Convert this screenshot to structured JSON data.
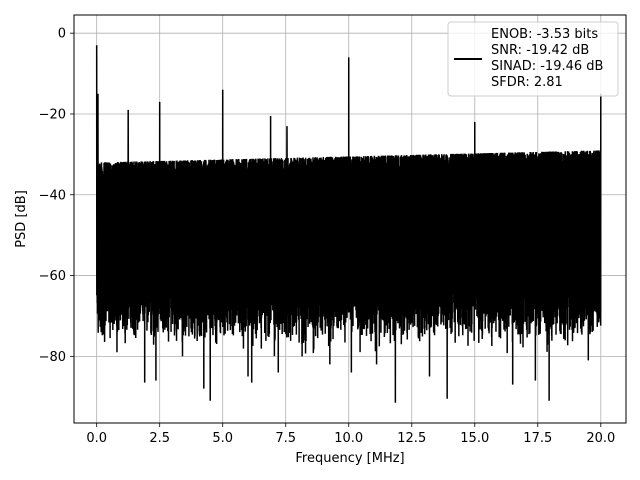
{
  "chart_data": {
    "type": "line",
    "xlabel": "Frequency [MHz]",
    "ylabel": "PSD [dB]",
    "xlim": [
      -0.9,
      21.0
    ],
    "ylim": [
      -96.5,
      4.5
    ],
    "xticks": [
      0.0,
      2.5,
      5.0,
      7.5,
      10.0,
      12.5,
      15.0,
      17.5,
      20.0
    ],
    "xtick_labels": [
      "0.0",
      "2.5",
      "5.0",
      "7.5",
      "10.0",
      "12.5",
      "15.0",
      "17.5",
      "20.0"
    ],
    "yticks": [
      0,
      -20,
      -40,
      -60,
      -80
    ],
    "ytick_labels": [
      "0",
      "−20",
      "−40",
      "−60",
      "−80"
    ],
    "grid": true,
    "legend_position": "top-right",
    "series_color": "#000000",
    "series": [
      {
        "legend_lines": [
          "ENOB: -3.53 bits",
          "SNR: -19.42 dB",
          "SINAD: -19.46 dB",
          "SFDR: 2.81"
        ],
        "x_range": [
          0.0,
          20.0
        ],
        "noise_floor_top_db": -29,
        "noise_floor_bottom_db": -75,
        "peaks": [
          {
            "x": 0.0,
            "y": -3
          },
          {
            "x": 0.05,
            "y": -15
          },
          {
            "x": 1.25,
            "y": -19
          },
          {
            "x": 2.5,
            "y": -17
          },
          {
            "x": 5.0,
            "y": -14
          },
          {
            "x": 6.9,
            "y": -20.5
          },
          {
            "x": 7.55,
            "y": -23
          },
          {
            "x": 10.0,
            "y": -6
          },
          {
            "x": 15.0,
            "y": -22
          },
          {
            "x": 20.0,
            "y": -15
          }
        ],
        "dips": [
          {
            "x": 0.8,
            "y": -79
          },
          {
            "x": 1.9,
            "y": -86.5
          },
          {
            "x": 2.35,
            "y": -86
          },
          {
            "x": 3.4,
            "y": -80
          },
          {
            "x": 4.25,
            "y": -88
          },
          {
            "x": 4.5,
            "y": -91
          },
          {
            "x": 6.0,
            "y": -85
          },
          {
            "x": 6.15,
            "y": -86.5
          },
          {
            "x": 7.2,
            "y": -84
          },
          {
            "x": 8.15,
            "y": -80
          },
          {
            "x": 9.25,
            "y": -82
          },
          {
            "x": 10.1,
            "y": -84
          },
          {
            "x": 11.1,
            "y": -82
          },
          {
            "x": 11.85,
            "y": -91.5
          },
          {
            "x": 13.2,
            "y": -85
          },
          {
            "x": 13.9,
            "y": -90.5
          },
          {
            "x": 16.5,
            "y": -87
          },
          {
            "x": 17.95,
            "y": -91
          },
          {
            "x": 17.4,
            "y": -86
          },
          {
            "x": 19.5,
            "y": -81
          }
        ]
      }
    ]
  }
}
